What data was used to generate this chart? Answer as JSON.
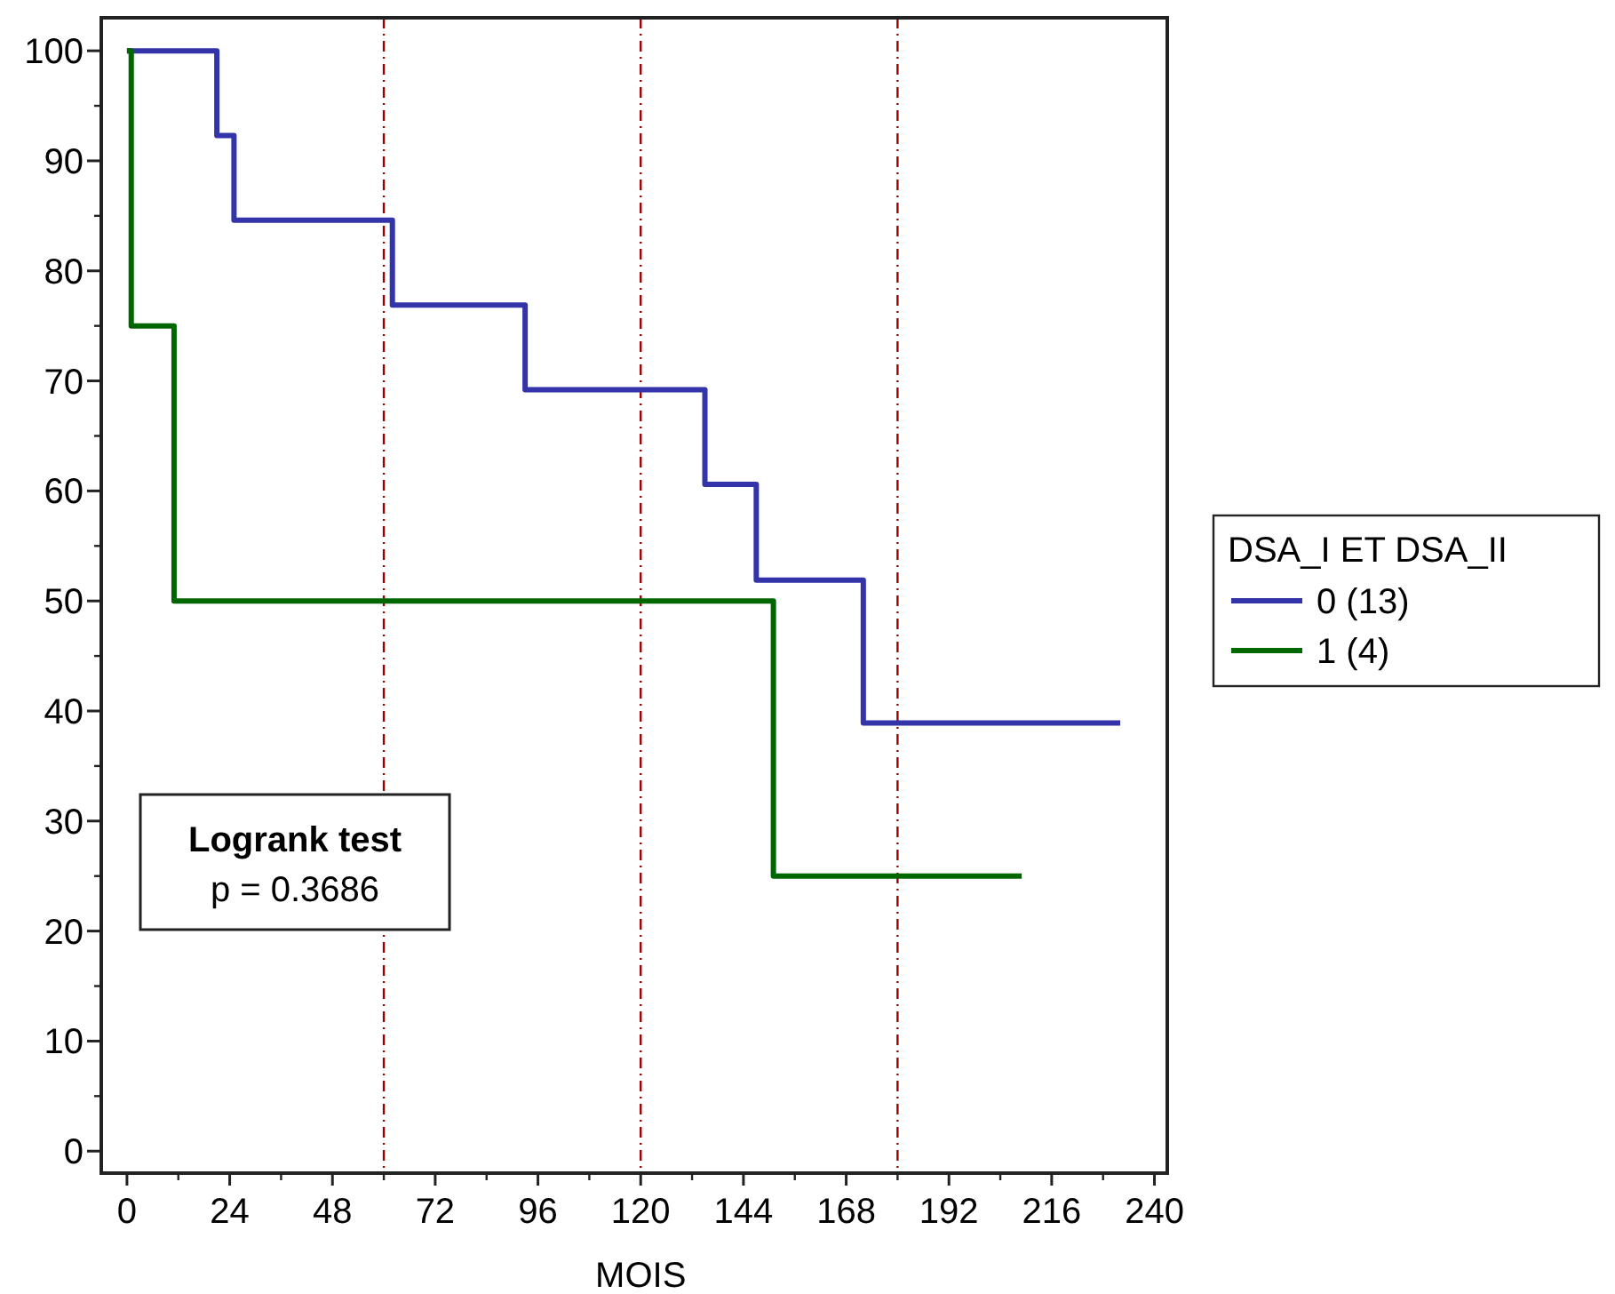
{
  "chart_data": {
    "type": "step",
    "xlabel": "MOIS",
    "legend_title": "DSA_I ET DSA_II",
    "legend": "right",
    "xlim": [
      -6,
      243
    ],
    "ylim": [
      -2,
      103
    ],
    "xticks": [
      0,
      24,
      48,
      72,
      96,
      120,
      144,
      168,
      192,
      216,
      240
    ],
    "yticks": [
      0,
      10,
      20,
      30,
      40,
      50,
      60,
      70,
      80,
      90,
      100
    ],
    "series": [
      {
        "name": "0 (13)",
        "color": "#3333aa",
        "x": [
          0,
          21,
          25,
          62,
          93,
          135,
          147,
          172,
          232
        ],
        "values": [
          100,
          92.3,
          84.6,
          76.9,
          69.2,
          60.6,
          51.9,
          38.9,
          38.9
        ]
      },
      {
        "name": "1 (4)",
        "color": "#006600",
        "x": [
          0,
          1,
          11,
          151,
          209
        ],
        "values": [
          100,
          75,
          50,
          25,
          25
        ]
      }
    ],
    "ref_lines": [
      {
        "axis": "x",
        "value": 60,
        "color": "#990000",
        "line_style": "dashed"
      },
      {
        "axis": "x",
        "value": 120,
        "color": "#990000",
        "line_style": "dashed"
      },
      {
        "axis": "x",
        "value": 180,
        "color": "#990000",
        "line_style": "dashed"
      }
    ],
    "annotations": [
      "Logrank test",
      "p = 0.3686"
    ]
  }
}
